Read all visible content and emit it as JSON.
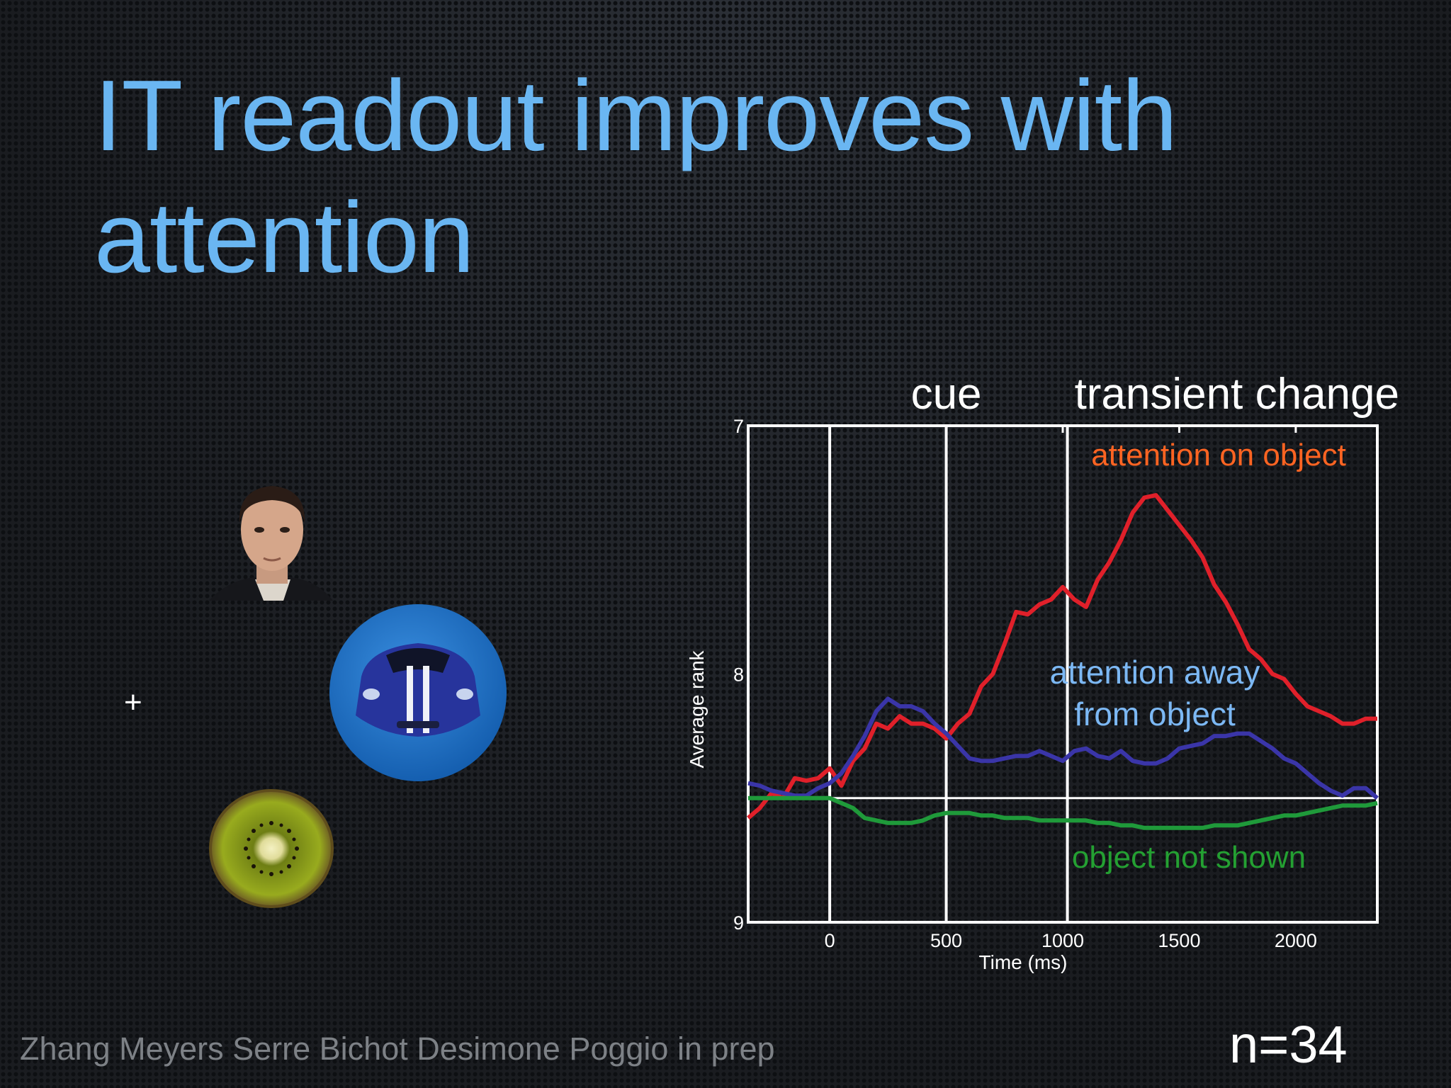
{
  "slide": {
    "title_line1": "IT readout improves with",
    "title_line2": "attention",
    "citation": "Zhang Meyers Serre Bichot Desimone Poggio in prep",
    "n_label": "n=34",
    "fixation_cross": "+"
  },
  "stimuli": [
    {
      "name": "face",
      "icon": "face-photo-icon"
    },
    {
      "name": "car",
      "icon": "car-photo-icon"
    },
    {
      "name": "kiwi",
      "icon": "kiwi-photo-icon"
    }
  ],
  "colors": {
    "title": "#6ab6f2",
    "attention_on": "#e0202a",
    "attention_away": "#3a35a8",
    "not_shown": "#1f9a3a",
    "attention_on_label": "#ff6422",
    "attention_away_label": "#7cb8f4",
    "not_shown_label": "#24a032",
    "car_disk": "#1e6fc4"
  },
  "chart_data": {
    "type": "line",
    "xlabel": "Time (ms)",
    "ylabel": "Average rank",
    "xlim": [
      -350,
      2350
    ],
    "ylim": [
      9,
      7
    ],
    "y_inverted": true,
    "xticks": [
      0,
      500,
      1000,
      1500,
      2000
    ],
    "yticks": [
      7,
      8,
      9
    ],
    "event_markers": [
      {
        "x": 0,
        "label": ""
      },
      {
        "x": 500,
        "label": "cue"
      },
      {
        "x": 1020,
        "label": "transient change"
      }
    ],
    "baseline_y": 8.5,
    "series": [
      {
        "name": "attention on object",
        "x": [
          -350,
          -300,
          -250,
          -200,
          -150,
          -100,
          -50,
          0,
          50,
          100,
          150,
          200,
          250,
          300,
          350,
          400,
          450,
          500,
          550,
          600,
          650,
          700,
          750,
          800,
          850,
          900,
          950,
          1000,
          1050,
          1100,
          1150,
          1200,
          1250,
          1300,
          1350,
          1400,
          1450,
          1500,
          1550,
          1600,
          1650,
          1700,
          1750,
          1800,
          1850,
          1900,
          1950,
          2000,
          2050,
          2100,
          2150,
          2200,
          2250,
          2300,
          2350
        ],
        "values": [
          8.58,
          8.54,
          8.48,
          8.5,
          8.42,
          8.43,
          8.42,
          8.38,
          8.45,
          8.35,
          8.3,
          8.2,
          8.22,
          8.17,
          8.2,
          8.2,
          8.22,
          8.26,
          8.2,
          8.16,
          8.05,
          8.0,
          7.88,
          7.75,
          7.76,
          7.72,
          7.7,
          7.65,
          7.7,
          7.73,
          7.62,
          7.55,
          7.46,
          7.35,
          7.29,
          7.28,
          7.34,
          7.4,
          7.46,
          7.53,
          7.64,
          7.71,
          7.8,
          7.9,
          7.94,
          8.0,
          8.02,
          8.08,
          8.13,
          8.15,
          8.17,
          8.2,
          8.2,
          8.18,
          8.18
        ]
      },
      {
        "name": "attention away from object",
        "x": [
          -350,
          -300,
          -250,
          -200,
          -150,
          -100,
          -50,
          0,
          50,
          100,
          150,
          200,
          250,
          300,
          350,
          400,
          450,
          500,
          550,
          600,
          650,
          700,
          750,
          800,
          850,
          900,
          950,
          1000,
          1050,
          1100,
          1150,
          1200,
          1250,
          1300,
          1350,
          1400,
          1450,
          1500,
          1550,
          1600,
          1650,
          1700,
          1750,
          1800,
          1850,
          1900,
          1950,
          2000,
          2050,
          2100,
          2150,
          2200,
          2250,
          2300,
          2350
        ],
        "values": [
          8.44,
          8.45,
          8.47,
          8.48,
          8.49,
          8.49,
          8.46,
          8.44,
          8.4,
          8.33,
          8.25,
          8.15,
          8.1,
          8.13,
          8.13,
          8.15,
          8.2,
          8.24,
          8.29,
          8.34,
          8.35,
          8.35,
          8.34,
          8.33,
          8.33,
          8.31,
          8.33,
          8.35,
          8.31,
          8.3,
          8.33,
          8.34,
          8.31,
          8.35,
          8.36,
          8.36,
          8.34,
          8.3,
          8.29,
          8.28,
          8.25,
          8.25,
          8.24,
          8.24,
          8.27,
          8.3,
          8.34,
          8.36,
          8.4,
          8.44,
          8.47,
          8.49,
          8.46,
          8.46,
          8.5
        ]
      },
      {
        "name": "object not shown",
        "x": [
          -350,
          -300,
          -250,
          -200,
          -150,
          -100,
          -50,
          0,
          50,
          100,
          150,
          200,
          250,
          300,
          350,
          400,
          450,
          500,
          550,
          600,
          650,
          700,
          750,
          800,
          850,
          900,
          950,
          1000,
          1050,
          1100,
          1150,
          1200,
          1250,
          1300,
          1350,
          1400,
          1450,
          1500,
          1550,
          1600,
          1650,
          1700,
          1750,
          1800,
          1850,
          1900,
          1950,
          2000,
          2050,
          2100,
          2150,
          2200,
          2250,
          2300,
          2350
        ],
        "values": [
          8.5,
          8.5,
          8.5,
          8.5,
          8.5,
          8.5,
          8.5,
          8.5,
          8.52,
          8.54,
          8.58,
          8.59,
          8.6,
          8.6,
          8.6,
          8.59,
          8.57,
          8.56,
          8.56,
          8.56,
          8.57,
          8.57,
          8.58,
          8.58,
          8.58,
          8.59,
          8.59,
          8.59,
          8.59,
          8.59,
          8.6,
          8.6,
          8.61,
          8.61,
          8.62,
          8.62,
          8.62,
          8.62,
          8.62,
          8.62,
          8.61,
          8.61,
          8.61,
          8.6,
          8.59,
          8.58,
          8.57,
          8.57,
          8.56,
          8.55,
          8.54,
          8.53,
          8.53,
          8.53,
          8.52
        ]
      }
    ],
    "annotations": [
      {
        "text": "attention on object",
        "series": 0
      },
      {
        "text": "attention away",
        "series": 1
      },
      {
        "text": "from  object",
        "series": 1
      },
      {
        "text": "object not shown",
        "series": 2
      }
    ]
  }
}
